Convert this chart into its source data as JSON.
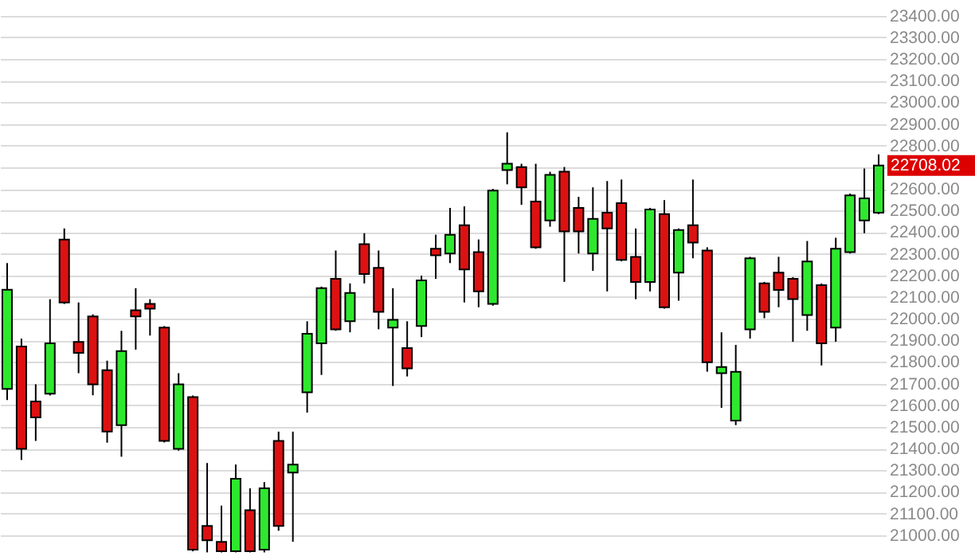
{
  "chart_data": {
    "type": "candlestick",
    "categories": [
      null,
      null,
      null,
      null,
      null,
      null,
      null,
      null,
      null,
      null,
      null,
      null,
      null,
      null,
      null,
      null,
      null,
      null,
      null,
      null,
      null,
      null,
      null,
      null,
      null,
      null,
      null,
      null,
      null,
      null,
      null,
      null,
      null,
      null,
      null,
      null,
      null,
      null,
      null,
      null,
      null,
      null,
      null,
      null,
      null,
      null,
      null,
      null,
      null,
      null,
      null,
      null,
      null,
      null,
      null,
      null,
      null,
      null,
      null,
      null,
      null,
      null
    ],
    "ohlc": [
      [
        21675,
        22257,
        21624,
        22134
      ],
      [
        21871,
        21908,
        21347,
        21398
      ],
      [
        21617,
        21697,
        21435,
        21544
      ],
      [
        21653,
        22090,
        21645,
        21886
      ],
      [
        22366,
        22417,
        22068,
        22075
      ],
      [
        21893,
        22075,
        21748,
        21842
      ],
      [
        22010,
        22020,
        21646,
        21697
      ],
      [
        21762,
        21806,
        21427,
        21478
      ],
      [
        21508,
        21944,
        21362,
        21850
      ],
      [
        22039,
        22141,
        21857,
        22010
      ],
      [
        22068,
        22090,
        21922,
        22046
      ],
      [
        21959,
        21966,
        21428,
        21435
      ],
      [
        21398,
        21748,
        21390,
        21697
      ],
      [
        21638,
        21645,
        20925,
        20933
      ],
      [
        21042,
        21333,
        20920,
        20976
      ],
      [
        20969,
        21136,
        20920,
        20925
      ],
      [
        20925,
        21326,
        20920,
        21260
      ],
      [
        21115,
        21216,
        20920,
        20925
      ],
      [
        20933,
        21245,
        20920,
        21216
      ],
      [
        21435,
        21478,
        21020,
        21042
      ],
      [
        21289,
        21478,
        20969,
        21326
      ],
      [
        21660,
        21988,
        21566,
        21930
      ],
      [
        21886,
        22148,
        21740,
        22141
      ],
      [
        22184,
        22315,
        21944,
        21951
      ],
      [
        21988,
        22163,
        21937,
        22119
      ],
      [
        22344,
        22395,
        22163,
        22206
      ],
      [
        22235,
        22315,
        21951,
        22032
      ],
      [
        21959,
        22141,
        21689,
        21995
      ],
      [
        21864,
        21988,
        21733,
        21770
      ],
      [
        21966,
        22199,
        21915,
        22177
      ],
      [
        22323,
        22388,
        22184,
        22293
      ],
      [
        22301,
        22512,
        22257,
        22388
      ],
      [
        22432,
        22519,
        22075,
        22228
      ],
      [
        22308,
        22366,
        22053,
        22126
      ],
      [
        22068,
        22600,
        22060,
        22592
      ],
      [
        22687,
        22861,
        22621,
        22716
      ],
      [
        22701,
        22716,
        22526,
        22607
      ],
      [
        22541,
        22716,
        22323,
        22330
      ],
      [
        22454,
        22679,
        22425,
        22665
      ],
      [
        22679,
        22701,
        22170,
        22403
      ],
      [
        22512,
        22563,
        22301,
        22403
      ],
      [
        22301,
        22607,
        22221,
        22461
      ],
      [
        22490,
        22636,
        22126,
        22417
      ],
      [
        22534,
        22643,
        22265,
        22272
      ],
      [
        22286,
        22417,
        22090,
        22170
      ],
      [
        22170,
        22512,
        22126,
        22505
      ],
      [
        22483,
        22548,
        22046,
        22053
      ],
      [
        22213,
        22417,
        22083,
        22410
      ],
      [
        22432,
        22643,
        22279,
        22352
      ],
      [
        22315,
        22330,
        21755,
        21799
      ],
      [
        21748,
        21937,
        21588,
        21777
      ],
      [
        21529,
        21879,
        21508,
        21755
      ],
      [
        21951,
        22286,
        21908,
        22279
      ],
      [
        22163,
        22170,
        22002,
        22032
      ],
      [
        22213,
        22286,
        22053,
        22133
      ],
      [
        22184,
        22192,
        21893,
        22090
      ],
      [
        22017,
        22359,
        21944,
        22264
      ],
      [
        22155,
        22163,
        21784,
        21886
      ],
      [
        21959,
        22374,
        21893,
        22323
      ],
      [
        22308,
        22578,
        22301,
        22570
      ],
      [
        22454,
        22694,
        22395,
        22556
      ],
      [
        22490,
        22759,
        22483,
        22708.02
      ]
    ],
    "colors": [
      "#2ee82e",
      "#dd1111",
      "#dd1111",
      "#2ee82e",
      "#dd1111",
      "#dd1111",
      "#dd1111",
      "#dd1111",
      "#2ee82e",
      "#dd1111",
      "#dd1111",
      "#dd1111",
      "#2ee82e",
      "#dd1111",
      "#dd1111",
      "#dd1111",
      "#2ee82e",
      "#dd1111",
      "#2ee82e",
      "#dd1111",
      "#2ee82e",
      "#2ee82e",
      "#2ee82e",
      "#dd1111",
      "#2ee82e",
      "#dd1111",
      "#dd1111",
      "#2ee82e",
      "#dd1111",
      "#2ee82e",
      "#dd1111",
      "#2ee82e",
      "#dd1111",
      "#dd1111",
      "#2ee82e",
      "#2ee82e",
      "#dd1111",
      "#dd1111",
      "#2ee82e",
      "#dd1111",
      "#dd1111",
      "#2ee82e",
      "#dd1111",
      "#dd1111",
      "#dd1111",
      "#2ee82e",
      "#dd1111",
      "#2ee82e",
      "#dd1111",
      "#dd1111",
      "#2ee82e",
      "#2ee82e",
      "#2ee82e",
      "#dd1111",
      "#dd1111",
      "#dd1111",
      "#2ee82e",
      "#dd1111",
      "#2ee82e",
      "#2ee82e",
      "#2ee82e",
      "#2ee82e"
    ],
    "ylim": [
      20918,
      23458
    ],
    "yticks": [
      {
        "value": 21000,
        "label": "21000.00"
      },
      {
        "value": 21100,
        "label": "21100.00"
      },
      {
        "value": 21200,
        "label": "21200.00"
      },
      {
        "value": 21300,
        "label": "21300.00"
      },
      {
        "value": 21400,
        "label": "21400.00"
      },
      {
        "value": 21500,
        "label": "21500.00"
      },
      {
        "value": 21600,
        "label": "21600.00"
      },
      {
        "value": 21700,
        "label": "21700.00"
      },
      {
        "value": 21800,
        "label": "21800.00"
      },
      {
        "value": 21900,
        "label": "21900.00"
      },
      {
        "value": 22000,
        "label": "22000.00"
      },
      {
        "value": 22100,
        "label": "22100.00"
      },
      {
        "value": 22200,
        "label": "22200.00"
      },
      {
        "value": 22300,
        "label": "22300.00"
      },
      {
        "value": 22400,
        "label": "22400.00"
      },
      {
        "value": 22500,
        "label": "22500.00"
      },
      {
        "value": 22600,
        "label": "22600.00"
      },
      {
        "value": 22700,
        "label": null
      },
      {
        "value": 22800,
        "label": "22800.00"
      },
      {
        "value": 22900,
        "label": "22900.00"
      },
      {
        "value": 23000,
        "label": "23000.00"
      },
      {
        "value": 23100,
        "label": "23100.00"
      },
      {
        "value": 23200,
        "label": "23200.00"
      },
      {
        "value": 23300,
        "label": "23300.00"
      },
      {
        "value": 23400,
        "label": "23400.00"
      }
    ],
    "grid": "y",
    "annotations": [
      "22708.02"
    ]
  }
}
